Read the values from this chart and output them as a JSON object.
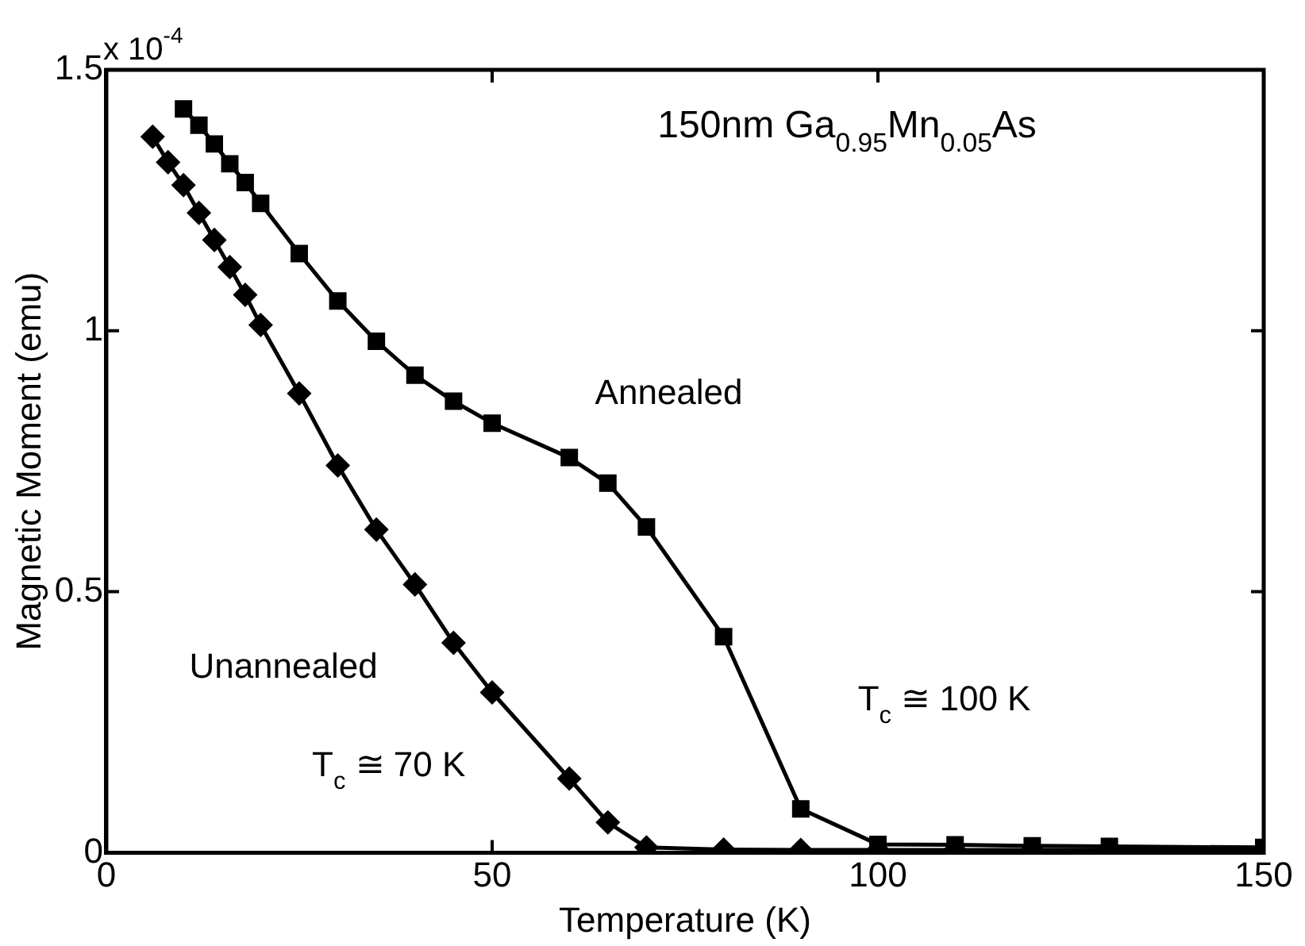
{
  "chart_data": {
    "type": "line",
    "title": "150nm Ga$_{0.95}$Mn$_{0.05}$As",
    "xlabel": "Temperature (K)",
    "ylabel": "Magnetic Moment (emu)",
    "xlim": [
      0,
      150
    ],
    "xticks": [
      0,
      50,
      100,
      150
    ],
    "ylim": [
      0,
      1.5
    ],
    "yticks": [
      0,
      0.5,
      1,
      1.5
    ],
    "grid": false,
    "legend": false,
    "annotations": [
      "x 10$^{-4}$",
      "Annealed",
      "Unannealed",
      "T$_{c}$ ≅ 100 K",
      "T$_{c}$ ≅ 70 K"
    ],
    "series": [
      {
        "color": "#000000",
        "marker": "square",
        "x": [
          10,
          12,
          14,
          16,
          18,
          20,
          25,
          30,
          35,
          40,
          45,
          50,
          60,
          65,
          70,
          80,
          90,
          100,
          110,
          120,
          130,
          150
        ],
        "values": [
          1.425,
          1.394,
          1.358,
          1.32,
          1.284,
          1.244,
          1.148,
          1.057,
          0.98,
          0.915,
          0.865,
          0.823,
          0.757,
          0.708,
          0.624,
          0.414,
          0.084,
          0.016,
          0.015,
          0.013,
          0.012,
          0.01
        ]
      },
      {
        "color": "#000000",
        "marker": "diamond",
        "x": [
          6,
          8,
          10,
          12,
          14,
          16,
          18,
          20,
          25,
          30,
          35,
          40,
          45,
          50,
          60,
          65,
          70,
          80,
          90,
          100,
          110,
          120,
          130,
          150
        ],
        "values": [
          1.372,
          1.323,
          1.279,
          1.226,
          1.174,
          1.122,
          1.069,
          1.011,
          0.88,
          0.742,
          0.619,
          0.514,
          0.402,
          0.307,
          0.142,
          0.058,
          0.01,
          0.006,
          0.005,
          0.005,
          0.005,
          0.005,
          0.005,
          0.005
        ]
      }
    ]
  }
}
